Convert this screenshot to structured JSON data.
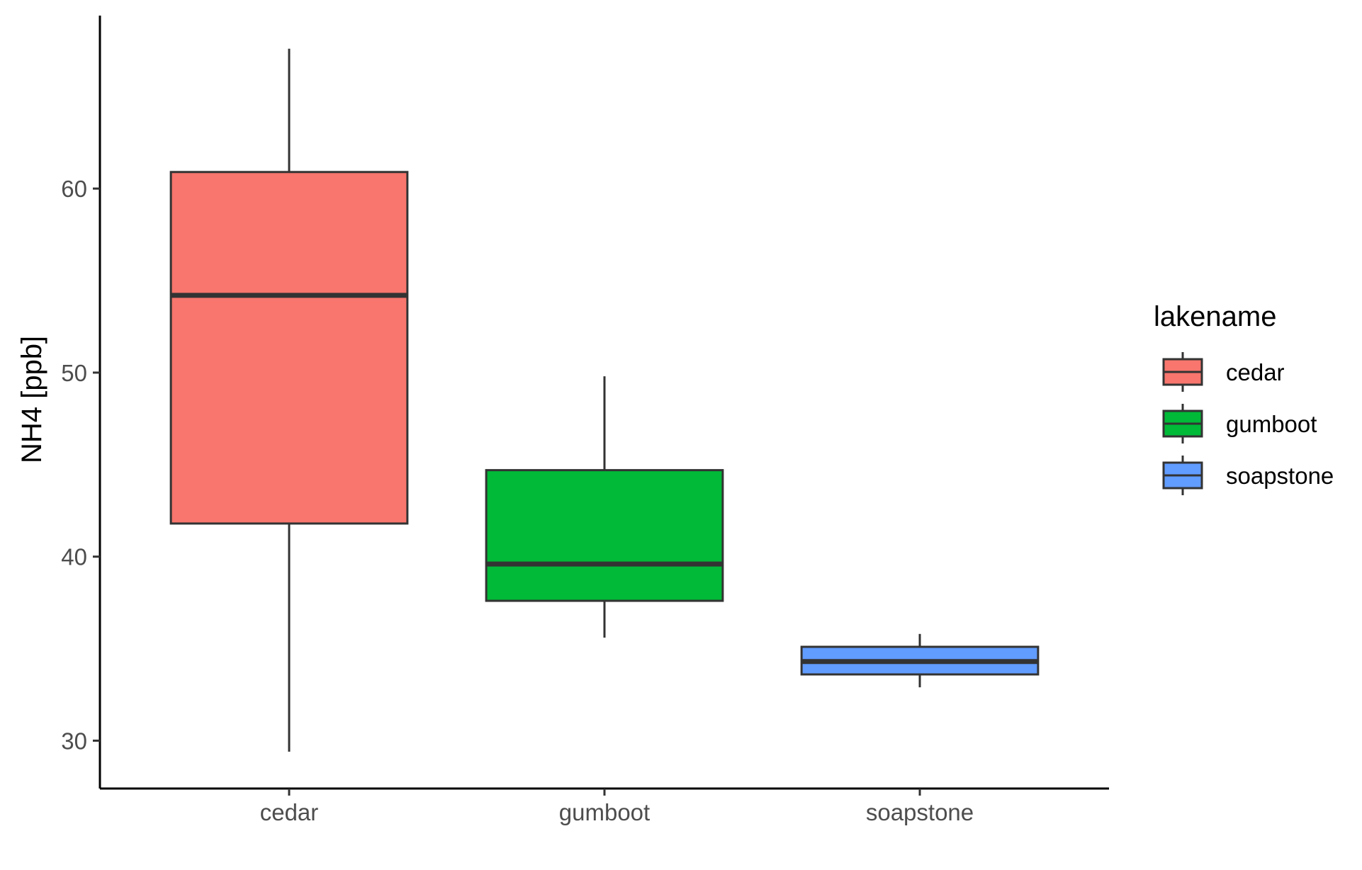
{
  "chart_data": {
    "type": "boxplot",
    "ylabel": "NH4 [ppb]",
    "xlabel": "",
    "ylim": [
      27.4,
      69.4
    ],
    "yticks": [
      30,
      40,
      50,
      60
    ],
    "categories": [
      "cedar",
      "gumboot",
      "soapstone"
    ],
    "boxes": [
      {
        "name": "cedar",
        "min": 29.4,
        "q1": 41.8,
        "median": 54.2,
        "q3": 60.9,
        "max": 67.6,
        "color": "#F8766D"
      },
      {
        "name": "gumboot",
        "min": 35.6,
        "q1": 37.6,
        "median": 39.6,
        "q3": 44.7,
        "max": 49.8,
        "color": "#00BA38"
      },
      {
        "name": "soapstone",
        "min": 32.9,
        "q1": 33.6,
        "median": 34.3,
        "q3": 35.1,
        "max": 35.8,
        "color": "#619CFF"
      }
    ],
    "legend": {
      "title": "lakename",
      "placement": "right",
      "items": [
        "cedar",
        "gumboot",
        "soapstone"
      ]
    },
    "grid": false
  }
}
